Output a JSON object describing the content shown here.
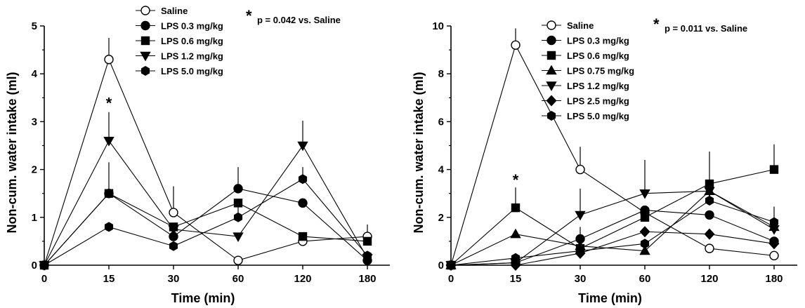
{
  "chart_data": [
    {
      "type": "line",
      "xlabel": "Time (min)",
      "ylabel": "Non-cum. water intake (ml)",
      "x": [
        "0",
        "15",
        "30",
        "60",
        "120",
        "180"
      ],
      "ylim": [
        0,
        5
      ],
      "yticks": [
        "0",
        "1",
        "2",
        "3",
        "4",
        "5"
      ],
      "grid": false,
      "legend_position": "top-center",
      "annotation": "p = 0.042 vs. Saline",
      "significance_marks": [
        {
          "x": "15",
          "y": 3.45,
          "label": "*"
        }
      ],
      "series": [
        {
          "name": "Saline",
          "marker": "circle-open",
          "values": [
            0,
            4.3,
            1.1,
            0.1,
            0.5,
            0.6
          ],
          "err": [
            0,
            0.45,
            0.55,
            0,
            0,
            0.25
          ]
        },
        {
          "name": "LPS 0.3 mg/kg",
          "marker": "circle",
          "values": [
            0,
            1.5,
            0.6,
            1.6,
            1.3,
            0.1
          ],
          "err": [
            0,
            0.65,
            0,
            0.45,
            0,
            0
          ]
        },
        {
          "name": "LPS 0.6 mg/kg",
          "marker": "square",
          "values": [
            0,
            1.5,
            0.8,
            1.3,
            0.6,
            0.5
          ],
          "err": [
            0,
            0,
            0,
            0,
            0,
            0
          ]
        },
        {
          "name": "LPS 1.2 mg/kg",
          "marker": "triangle-down",
          "values": [
            0,
            2.6,
            0.75,
            0.6,
            2.5,
            0.15
          ],
          "err": [
            0,
            0.6,
            0,
            0,
            0.52,
            0
          ]
        },
        {
          "name": "LPS 5.0 mg/kg",
          "marker": "hexagon",
          "values": [
            0,
            0.8,
            0.4,
            1.0,
            1.8,
            0.2
          ],
          "err": [
            0,
            0,
            0,
            0.3,
            0.25,
            0
          ]
        }
      ]
    },
    {
      "type": "line",
      "xlabel": "Time (min)",
      "ylabel": "Non-cum. water intake (ml)",
      "x": [
        "0",
        "15",
        "30",
        "60",
        "120",
        "180"
      ],
      "ylim": [
        0,
        10
      ],
      "yticks": [
        "0",
        "2",
        "4",
        "6",
        "8",
        "10"
      ],
      "grid": false,
      "legend_position": "top-center",
      "annotation": "p = 0.011 vs. Saline",
      "significance_marks": [
        {
          "x": "15",
          "y": 3.7,
          "label": "*"
        }
      ],
      "series": [
        {
          "name": "Saline",
          "marker": "circle-open",
          "values": [
            0,
            9.2,
            4.0,
            2.2,
            0.7,
            0.4
          ],
          "err": [
            0,
            0.7,
            0.95,
            0,
            0,
            0
          ]
        },
        {
          "name": "LPS 0.3 mg/kg",
          "marker": "circle",
          "values": [
            0,
            0.1,
            1.1,
            2.3,
            2.1,
            1.0
          ],
          "err": [
            0,
            0,
            0,
            0,
            0,
            0
          ]
        },
        {
          "name": "LPS 0.6 mg/kg",
          "marker": "square",
          "values": [
            0,
            2.4,
            0.7,
            2.0,
            3.4,
            4.0
          ],
          "err": [
            0,
            0.85,
            0.9,
            0,
            1.35,
            1.05
          ]
        },
        {
          "name": "LPS 0.75 mg/kg",
          "marker": "triangle-up",
          "values": [
            0,
            1.3,
            0.8,
            0.6,
            3.1,
            1.6
          ],
          "err": [
            0,
            0,
            0,
            0,
            0,
            0
          ]
        },
        {
          "name": "LPS 1.2 mg/kg",
          "marker": "triangle-down",
          "values": [
            0,
            0.1,
            2.1,
            3.0,
            3.1,
            1.5
          ],
          "err": [
            0,
            0,
            1.1,
            1.4,
            0,
            0
          ]
        },
        {
          "name": "LPS 2.5 mg/kg",
          "marker": "diamond",
          "values": [
            0,
            0.0,
            0.5,
            1.4,
            1.3,
            0.9
          ],
          "err": [
            0,
            0,
            0,
            0,
            0,
            0
          ]
        },
        {
          "name": "LPS 5.0 mg/kg",
          "marker": "hexagon",
          "values": [
            0,
            0.3,
            0.6,
            0.9,
            2.7,
            1.8
          ],
          "err": [
            0,
            0,
            0,
            0,
            0,
            0.65
          ]
        }
      ]
    }
  ]
}
